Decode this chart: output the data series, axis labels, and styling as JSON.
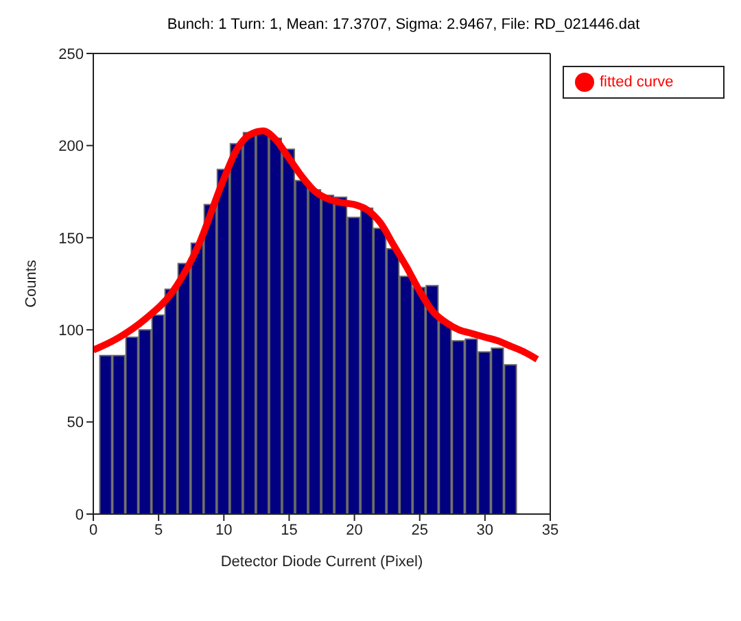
{
  "chart_data": {
    "type": "bar",
    "title": "Bunch: 1 Turn: 1,  Mean: 17.3707,  Sigma: 2.9467, File: RD_021446.dat",
    "xlabel": "Detector Diode Current (Pixel)",
    "ylabel": "Counts",
    "x": [
      1,
      2,
      3,
      4,
      5,
      6,
      7,
      8,
      9,
      10,
      11,
      12,
      13,
      14,
      15,
      16,
      17,
      18,
      19,
      20,
      21,
      22,
      23,
      24,
      25,
      26,
      27,
      28,
      29,
      30,
      31,
      32
    ],
    "series": [
      {
        "color": "#000080",
        "values": [
          86,
          86,
          96,
          100,
          108,
          122,
          136,
          147,
          168,
          187,
          201,
          207,
          208,
          204,
          198,
          181,
          176,
          173,
          172,
          161,
          166,
          155,
          144,
          129,
          123,
          124,
          104,
          94,
          95,
          88,
          90,
          81
        ]
      },
      {
        "type": "line",
        "name": "fitted curve",
        "color": "#ff0000",
        "x": [
          0,
          2,
          4,
          6,
          8,
          10,
          11,
          12,
          13,
          14,
          15,
          16,
          17,
          18,
          19,
          20,
          21,
          22,
          23,
          24,
          25,
          26,
          27,
          28,
          29,
          30,
          31,
          32,
          33,
          34
        ],
        "values": [
          89,
          96,
          106,
          120,
          145,
          182,
          198,
          206,
          208,
          203,
          193,
          183,
          175,
          171,
          169,
          168,
          165,
          158,
          146,
          134,
          121,
          110,
          104,
          100,
          98,
          96,
          94,
          91,
          88,
          84
        ]
      }
    ],
    "xlim": [
      0,
      35
    ],
    "xticks": [
      0,
      5,
      10,
      15,
      20,
      25,
      30,
      35
    ],
    "ylim": [
      0,
      250
    ],
    "yticks": [
      0,
      50,
      100,
      150,
      200,
      250
    ],
    "legend": "top right",
    "grid": false
  }
}
